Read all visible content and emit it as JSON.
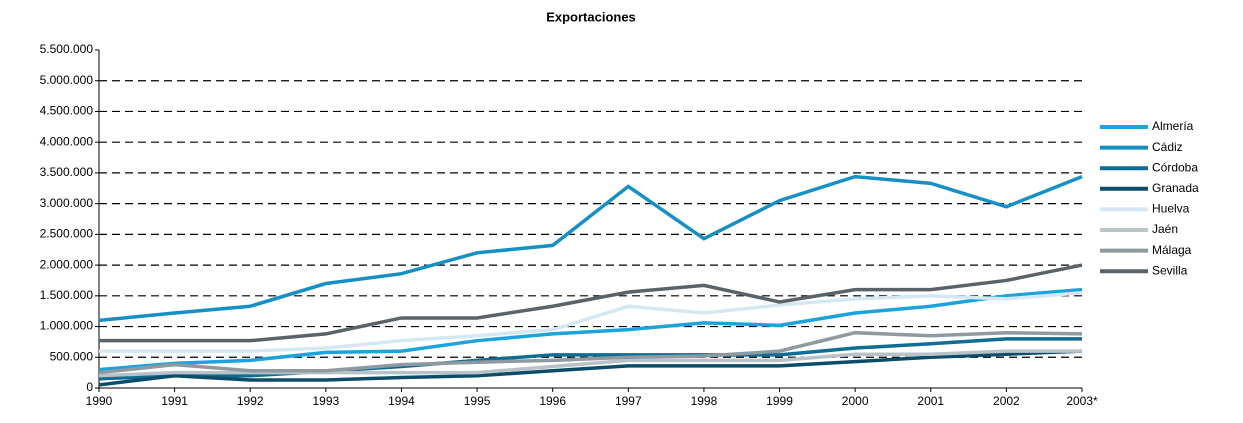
{
  "chart_data": {
    "type": "line",
    "title": "Exportaciones",
    "categories": [
      "1990",
      "1991",
      "1992",
      "1993",
      "1994",
      "1995",
      "1996",
      "1997",
      "1998",
      "1999",
      "2000",
      "2001",
      "2002",
      "2003*"
    ],
    "ylim": [
      0,
      5500000
    ],
    "yticks": [
      0,
      {
        "value": 500000,
        "label": "500.000"
      },
      {
        "value": 1000000,
        "label": "1.000.000"
      },
      {
        "value": 1500000,
        "label": "1.500.000"
      },
      {
        "value": 2000000,
        "label": "2.000.000"
      },
      {
        "value": 2500000,
        "label": "2.500.000"
      },
      {
        "value": 3000000,
        "label": "3.000.000"
      },
      {
        "value": 3500000,
        "label": "3.500.000"
      },
      {
        "value": 4000000,
        "label": "4.000.000"
      },
      {
        "value": 4500000,
        "label": "4.500.000"
      },
      {
        "value": 5000000,
        "label": "5.000.000"
      },
      {
        "value": 5500000,
        "label": "5.500.000"
      }
    ],
    "grid": true,
    "series": [
      {
        "name": "Almería",
        "color": "#1ba3dc",
        "values": [
          300000,
          400000,
          450000,
          580000,
          600000,
          770000,
          880000,
          950000,
          1060000,
          1020000,
          1220000,
          1330000,
          1500000,
          1600000
        ]
      },
      {
        "name": "Cádiz",
        "color": "#1590c4",
        "values": [
          1100000,
          1220000,
          1330000,
          1700000,
          1860000,
          2200000,
          2320000,
          3280000,
          2430000,
          3050000,
          3440000,
          3330000,
          2950000,
          3440000
        ]
      },
      {
        "name": "Córdoba",
        "color": "#0f6d94",
        "values": [
          150000,
          200000,
          200000,
          270000,
          350000,
          450000,
          540000,
          540000,
          540000,
          540000,
          650000,
          720000,
          800000,
          800000
        ]
      },
      {
        "name": "Granada",
        "color": "#0b4d68",
        "values": [
          50000,
          200000,
          130000,
          130000,
          170000,
          200000,
          280000,
          360000,
          360000,
          360000,
          430000,
          500000,
          550000,
          600000
        ]
      },
      {
        "name": "Huelva",
        "color": "#d4e8f3",
        "values": [
          600000,
          600000,
          600000,
          650000,
          770000,
          850000,
          950000,
          1330000,
          1220000,
          1350000,
          1450000,
          1500000,
          1450000,
          1550000
        ]
      },
      {
        "name": "Jaén",
        "color": "#b8c3c9",
        "values": [
          200000,
          250000,
          250000,
          250000,
          250000,
          250000,
          350000,
          450000,
          450000,
          450000,
          550000,
          550000,
          600000,
          600000
        ]
      },
      {
        "name": "Málaga",
        "color": "#8e99a0",
        "values": [
          250000,
          380000,
          280000,
          280000,
          380000,
          420000,
          450000,
          500000,
          520000,
          600000,
          900000,
          850000,
          900000,
          880000
        ]
      },
      {
        "name": "Sevilla",
        "color": "#5a6369",
        "values": [
          770000,
          770000,
          770000,
          880000,
          1140000,
          1140000,
          1330000,
          1560000,
          1670000,
          1400000,
          1600000,
          1600000,
          1750000,
          2000000
        ]
      }
    ]
  }
}
